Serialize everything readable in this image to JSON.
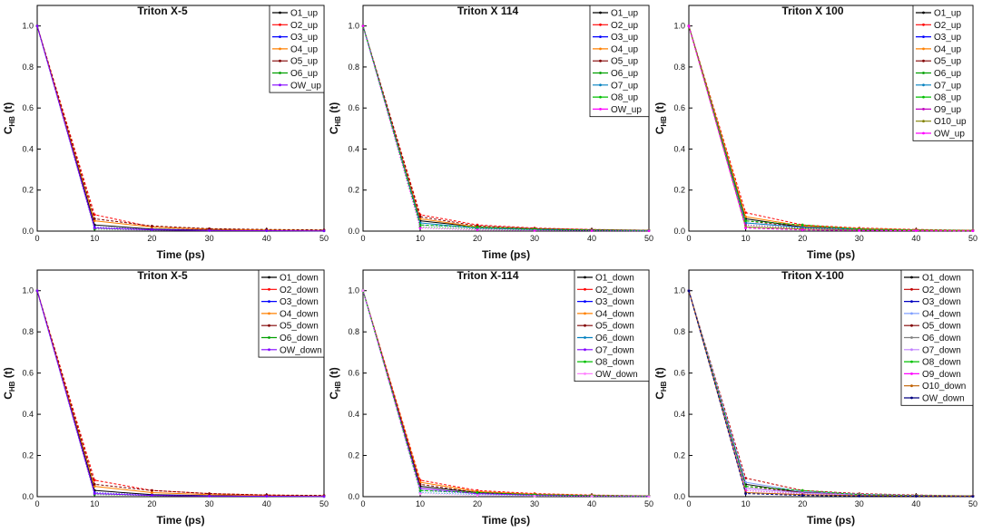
{
  "figure": {
    "panels": [
      {
        "title": "Triton X-5",
        "xlabel": "Time (ps)",
        "ylabel_main": "C",
        "ylabel_sub": "HB",
        "ylabel_tail": " (t)",
        "legend": [
          "O1_up",
          "O2_up",
          "O3_up",
          "O4_up",
          "O5_up",
          "O6_up",
          "OW_up"
        ]
      },
      {
        "title": "Triton X 114",
        "xlabel": "Time (ps)",
        "ylabel_main": "C",
        "ylabel_sub": "HB",
        "ylabel_tail": " (t)",
        "legend": [
          "O1_up",
          "O2_up",
          "O3_up",
          "O4_up",
          "O5_up",
          "O6_up",
          "O7_up",
          "O8_up",
          "OW_up"
        ]
      },
      {
        "title": "Triton X 100",
        "xlabel": "Time (ps)",
        "ylabel_main": "C",
        "ylabel_sub": "HB",
        "ylabel_tail": " (t)",
        "legend": [
          "O1_up",
          "O2_up",
          "O3_up",
          "O4_up",
          "O5_up",
          "O6_up",
          "O7_up",
          "O8_up",
          "O9_up",
          "O10_up",
          "OW_up"
        ]
      },
      {
        "title": "Triton X-5",
        "xlabel": "Time (ps)",
        "ylabel_main": "C",
        "ylabel_sub": "HB",
        "ylabel_tail": " (t)",
        "legend": [
          "O1_down",
          "O2_down",
          "O3_down",
          "O4_down",
          "O5_down",
          "O6_down",
          "OW_down"
        ]
      },
      {
        "title": "Triton X-114",
        "xlabel": "Time (ps)",
        "ylabel_main": "C",
        "ylabel_sub": "HB",
        "ylabel_tail": " (t)",
        "legend": [
          "O1_down",
          "O2_down",
          "O3_down",
          "O4_down",
          "O5_down",
          "O6_down",
          "O7_down",
          "O8_down",
          "OW_down"
        ]
      },
      {
        "title": "Triton X-100",
        "xlabel": "Time (ps)",
        "ylabel_main": "C",
        "ylabel_sub": "HB",
        "ylabel_tail": " (t)",
        "legend": [
          "O1_down",
          "O2_down",
          "O3_down",
          "O4_down",
          "O5_down",
          "O6_down",
          "O7_down",
          "O8_down",
          "O9_down",
          "O10_down",
          "OW_down"
        ]
      }
    ]
  },
  "chart_data": [
    {
      "type": "line",
      "title": "Triton X-5",
      "xlabel": "Time (ps)",
      "ylabel": "C_HB (t)",
      "xlim": [
        0,
        50
      ],
      "ylim": [
        0,
        1.1
      ],
      "xticks": [
        0,
        10,
        20,
        30,
        40,
        50
      ],
      "yticks": [
        0.0,
        0.2,
        0.4,
        0.6,
        0.8,
        1.0
      ],
      "x": [
        0,
        10,
        20,
        30,
        40,
        50
      ],
      "series": [
        {
          "name": "O1_up",
          "color": "#000000",
          "values": [
            1.0,
            0.03,
            0.01,
            0.005,
            0.003,
            0.002
          ]
        },
        {
          "name": "O2_up",
          "color": "#ff0000",
          "values": [
            1.0,
            0.08,
            0.02,
            0.008,
            0.005,
            0.003
          ]
        },
        {
          "name": "O3_up",
          "color": "#0000ff",
          "values": [
            1.0,
            0.02,
            0.008,
            0.004,
            0.002,
            0.001
          ]
        },
        {
          "name": "O4_up",
          "color": "#ff8000",
          "values": [
            1.0,
            0.05,
            0.02,
            0.01,
            0.005,
            0.004
          ]
        },
        {
          "name": "O5_up",
          "color": "#800000",
          "values": [
            1.0,
            0.06,
            0.025,
            0.012,
            0.008,
            0.006
          ]
        },
        {
          "name": "O6_up",
          "color": "#00a000",
          "values": [
            1.0,
            0.01,
            0.005,
            0.003,
            0.002,
            0.001
          ]
        },
        {
          "name": "OW_up",
          "color": "#8000ff",
          "values": [
            1.0,
            0.015,
            0.006,
            0.003,
            0.002,
            0.001
          ]
        }
      ]
    },
    {
      "type": "line",
      "title": "Triton X 114",
      "xlabel": "Time (ps)",
      "ylabel": "C_HB (t)",
      "xlim": [
        0,
        50
      ],
      "ylim": [
        0,
        1.1
      ],
      "xticks": [
        0,
        10,
        20,
        30,
        40,
        50
      ],
      "yticks": [
        0.0,
        0.2,
        0.4,
        0.6,
        0.8,
        1.0
      ],
      "x": [
        0,
        10,
        20,
        30,
        40,
        50
      ],
      "series": [
        {
          "name": "O1_up",
          "color": "#000000",
          "values": [
            1.0,
            0.05,
            0.02,
            0.01,
            0.005,
            0.003
          ]
        },
        {
          "name": "O2_up",
          "color": "#ff0000",
          "values": [
            1.0,
            0.08,
            0.03,
            0.015,
            0.008,
            0.004
          ]
        },
        {
          "name": "O3_up",
          "color": "#0000ff",
          "values": [
            1.0,
            0.03,
            0.015,
            0.008,
            0.004,
            0.002
          ]
        },
        {
          "name": "O4_up",
          "color": "#ff8000",
          "values": [
            1.0,
            0.06,
            0.02,
            0.01,
            0.006,
            0.003
          ]
        },
        {
          "name": "O5_up",
          "color": "#800000",
          "values": [
            1.0,
            0.07,
            0.025,
            0.012,
            0.007,
            0.004
          ]
        },
        {
          "name": "O6_up",
          "color": "#00a000",
          "values": [
            1.0,
            0.02,
            0.01,
            0.006,
            0.003,
            0.002
          ]
        },
        {
          "name": "O7_up",
          "color": "#0080c0",
          "values": [
            1.0,
            0.04,
            0.015,
            0.008,
            0.004,
            0.002
          ]
        },
        {
          "name": "O8_up",
          "color": "#00c000",
          "values": [
            1.0,
            0.03,
            0.02,
            0.01,
            0.005,
            0.003
          ]
        },
        {
          "name": "OW_up",
          "color": "#ff00ff",
          "values": [
            1.0,
            0.015,
            0.006,
            0.003,
            0.002,
            0.001
          ]
        }
      ]
    },
    {
      "type": "line",
      "title": "Triton X 100",
      "xlabel": "Time (ps)",
      "ylabel": "C_HB (t)",
      "xlim": [
        0,
        50
      ],
      "ylim": [
        0,
        1.1
      ],
      "xticks": [
        0,
        10,
        20,
        30,
        40,
        50
      ],
      "yticks": [
        0.0,
        0.2,
        0.4,
        0.6,
        0.8,
        1.0
      ],
      "x": [
        0,
        10,
        20,
        30,
        40,
        50
      ],
      "series": [
        {
          "name": "O1_up",
          "color": "#000000",
          "values": [
            1.0,
            0.06,
            0.02,
            0.01,
            0.005,
            0.003
          ]
        },
        {
          "name": "O2_up",
          "color": "#ff0000",
          "values": [
            1.0,
            0.09,
            0.03,
            0.015,
            0.008,
            0.004
          ]
        },
        {
          "name": "O3_up",
          "color": "#0000ff",
          "values": [
            1.0,
            0.04,
            0.02,
            0.01,
            0.005,
            0.002
          ]
        },
        {
          "name": "O4_up",
          "color": "#ff8000",
          "values": [
            1.0,
            0.07,
            0.025,
            0.012,
            0.006,
            0.003
          ]
        },
        {
          "name": "O5_up",
          "color": "#800000",
          "values": [
            1.0,
            0.05,
            0.02,
            0.01,
            0.005,
            0.003
          ]
        },
        {
          "name": "O6_up",
          "color": "#00a000",
          "values": [
            1.0,
            0.03,
            0.015,
            0.008,
            0.004,
            0.002
          ]
        },
        {
          "name": "O7_up",
          "color": "#0080c0",
          "values": [
            1.0,
            0.04,
            0.018,
            0.009,
            0.004,
            0.002
          ]
        },
        {
          "name": "O8_up",
          "color": "#00c000",
          "values": [
            1.0,
            0.05,
            0.03,
            0.01,
            0.005,
            0.003
          ]
        },
        {
          "name": "O9_up",
          "color": "#c000c0",
          "values": [
            1.0,
            0.03,
            0.012,
            0.006,
            0.003,
            0.002
          ]
        },
        {
          "name": "O10_up",
          "color": "#808000",
          "values": [
            1.0,
            0.02,
            0.01,
            0.005,
            0.003,
            0.002
          ]
        },
        {
          "name": "OW_up",
          "color": "#ff00ff",
          "values": [
            1.0,
            0.015,
            0.006,
            0.003,
            0.002,
            0.001
          ]
        }
      ]
    },
    {
      "type": "line",
      "title": "Triton X-5",
      "xlabel": "Time (ps)",
      "ylabel": "C_HB (t)",
      "xlim": [
        0,
        50
      ],
      "ylim": [
        0,
        1.1
      ],
      "xticks": [
        0,
        10,
        20,
        30,
        40,
        50
      ],
      "yticks": [
        0.0,
        0.2,
        0.4,
        0.6,
        0.8,
        1.0
      ],
      "x": [
        0,
        10,
        20,
        30,
        40,
        50
      ],
      "series": [
        {
          "name": "O1_down",
          "color": "#000000",
          "values": [
            1.0,
            0.03,
            0.01,
            0.005,
            0.003,
            0.002
          ]
        },
        {
          "name": "O2_down",
          "color": "#ff0000",
          "values": [
            1.0,
            0.08,
            0.03,
            0.015,
            0.008,
            0.004
          ]
        },
        {
          "name": "O3_down",
          "color": "#0000ff",
          "values": [
            1.0,
            0.02,
            0.008,
            0.004,
            0.002,
            0.001
          ]
        },
        {
          "name": "O4_down",
          "color": "#ff8000",
          "values": [
            1.0,
            0.05,
            0.02,
            0.01,
            0.005,
            0.004
          ]
        },
        {
          "name": "O5_down",
          "color": "#800000",
          "values": [
            1.0,
            0.06,
            0.03,
            0.015,
            0.008,
            0.006
          ]
        },
        {
          "name": "O6_down",
          "color": "#00a000",
          "values": [
            1.0,
            0.01,
            0.005,
            0.003,
            0.002,
            0.001
          ]
        },
        {
          "name": "OW_down",
          "color": "#8000ff",
          "values": [
            1.0,
            0.015,
            0.006,
            0.003,
            0.002,
            0.001
          ]
        }
      ]
    },
    {
      "type": "line",
      "title": "Triton X-114",
      "xlabel": "Time (ps)",
      "ylabel": "C_HB (t)",
      "xlim": [
        0,
        50
      ],
      "ylim": [
        0,
        1.1
      ],
      "xticks": [
        0,
        10,
        20,
        30,
        40,
        50
      ],
      "yticks": [
        0.0,
        0.2,
        0.4,
        0.6,
        0.8,
        1.0
      ],
      "x": [
        0,
        10,
        20,
        30,
        40,
        50
      ],
      "series": [
        {
          "name": "O1_down",
          "color": "#000000",
          "values": [
            1.0,
            0.05,
            0.02,
            0.01,
            0.005,
            0.003
          ]
        },
        {
          "name": "O2_down",
          "color": "#ff0000",
          "values": [
            1.0,
            0.08,
            0.03,
            0.015,
            0.008,
            0.004
          ]
        },
        {
          "name": "O3_down",
          "color": "#0000ff",
          "values": [
            1.0,
            0.03,
            0.015,
            0.008,
            0.004,
            0.002
          ]
        },
        {
          "name": "O4_down",
          "color": "#ff8000",
          "values": [
            1.0,
            0.07,
            0.025,
            0.012,
            0.006,
            0.003
          ]
        },
        {
          "name": "O5_down",
          "color": "#800000",
          "values": [
            1.0,
            0.06,
            0.02,
            0.01,
            0.005,
            0.003
          ]
        },
        {
          "name": "O6_down",
          "color": "#0080c0",
          "values": [
            1.0,
            0.02,
            0.01,
            0.006,
            0.003,
            0.002
          ]
        },
        {
          "name": "O7_down",
          "color": "#8000ff",
          "values": [
            1.0,
            0.04,
            0.015,
            0.008,
            0.004,
            0.002
          ]
        },
        {
          "name": "O8_down",
          "color": "#00c000",
          "values": [
            1.0,
            0.03,
            0.02,
            0.01,
            0.005,
            0.003
          ]
        },
        {
          "name": "OW_down",
          "color": "#ff80ff",
          "values": [
            1.0,
            0.015,
            0.006,
            0.003,
            0.002,
            0.001
          ]
        }
      ]
    },
    {
      "type": "line",
      "title": "Triton X-100",
      "xlabel": "Time (ps)",
      "ylabel": "C_HB (t)",
      "xlim": [
        0,
        50
      ],
      "ylim": [
        0,
        1.1
      ],
      "xticks": [
        0,
        10,
        20,
        30,
        40,
        50
      ],
      "yticks": [
        0.0,
        0.2,
        0.4,
        0.6,
        0.8,
        1.0
      ],
      "x": [
        0,
        10,
        20,
        30,
        40,
        50
      ],
      "series": [
        {
          "name": "O1_down",
          "color": "#000000",
          "values": [
            1.0,
            0.06,
            0.02,
            0.01,
            0.005,
            0.003
          ]
        },
        {
          "name": "O2_down",
          "color": "#c00000",
          "values": [
            1.0,
            0.09,
            0.03,
            0.015,
            0.008,
            0.004
          ]
        },
        {
          "name": "O3_down",
          "color": "#0000c0",
          "values": [
            1.0,
            0.04,
            0.02,
            0.01,
            0.005,
            0.002
          ]
        },
        {
          "name": "O4_down",
          "color": "#80a0ff",
          "values": [
            1.0,
            0.07,
            0.025,
            0.012,
            0.006,
            0.003
          ]
        },
        {
          "name": "O5_down",
          "color": "#800000",
          "values": [
            1.0,
            0.05,
            0.02,
            0.01,
            0.005,
            0.003
          ]
        },
        {
          "name": "O6_down",
          "color": "#808080",
          "values": [
            1.0,
            0.03,
            0.015,
            0.008,
            0.004,
            0.002
          ]
        },
        {
          "name": "O7_down",
          "color": "#c080ff",
          "values": [
            1.0,
            0.04,
            0.018,
            0.009,
            0.004,
            0.002
          ]
        },
        {
          "name": "O8_down",
          "color": "#00c000",
          "values": [
            1.0,
            0.05,
            0.03,
            0.01,
            0.005,
            0.003
          ]
        },
        {
          "name": "O9_down",
          "color": "#ff00ff",
          "values": [
            1.0,
            0.03,
            0.012,
            0.006,
            0.003,
            0.002
          ]
        },
        {
          "name": "O10_down",
          "color": "#c06000",
          "values": [
            1.0,
            0.02,
            0.01,
            0.005,
            0.003,
            0.002
          ]
        },
        {
          "name": "OW_down",
          "color": "#000080",
          "values": [
            1.0,
            0.015,
            0.006,
            0.003,
            0.002,
            0.001
          ]
        }
      ]
    }
  ]
}
